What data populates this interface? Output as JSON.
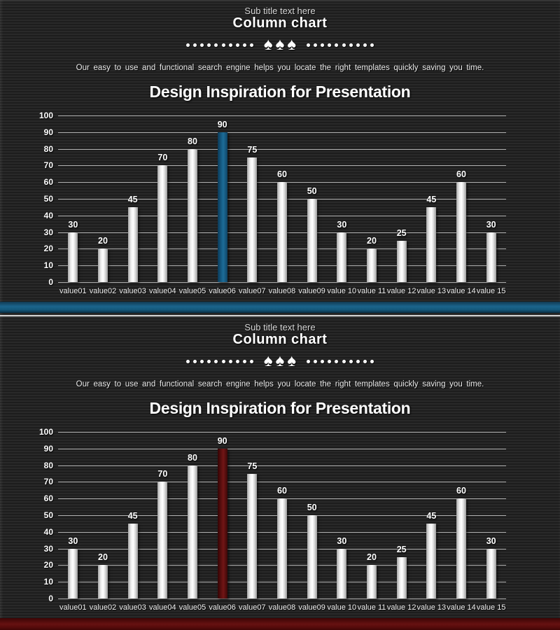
{
  "content": {
    "subtitle": "Sub title text here",
    "title": "Column chart",
    "description": "Our easy to use and functional search engine helps you locate the right templates quickly saving you time.",
    "heading": "Design Inspiration for Presentation"
  },
  "divider": {
    "left_dots": 10,
    "right_dots": 10,
    "spade_icon": "♠",
    "spade_count": 3,
    "color": "#ffffff"
  },
  "slides": [
    {
      "name": "column-chart-slide-blue",
      "accent": "blue",
      "accent_color": "#1a628a",
      "strip_color": "#14587b"
    },
    {
      "name": "column-chart-slide-red",
      "accent": "red",
      "accent_color": "#641111",
      "strip_color": "#5c0d0d"
    }
  ],
  "chart_data": [
    {
      "type": "bar",
      "categories": [
        "value01",
        "value02",
        "value03",
        "value04",
        "value05",
        "value06",
        "value07",
        "value08",
        "value09",
        "value 10",
        "value 11",
        "value 12",
        "value 13",
        "value 14",
        "value 15"
      ],
      "values": [
        30,
        20,
        45,
        70,
        80,
        90,
        75,
        60,
        50,
        30,
        20,
        25,
        45,
        60,
        30
      ],
      "title": "",
      "xlabel": "",
      "ylabel": "",
      "ylim": [
        0,
        100
      ],
      "ytick_step": 10,
      "yticks": [
        0,
        10,
        20,
        30,
        40,
        50,
        60,
        70,
        80,
        90,
        100
      ],
      "grid": true,
      "value_labels": true,
      "bar_color": "#f2f2f2",
      "highlight_index": 5,
      "highlight_color": "#1a628a",
      "legend": "none"
    },
    {
      "type": "bar",
      "categories": [
        "value01",
        "value02",
        "value03",
        "value04",
        "value05",
        "value06",
        "value07",
        "value08",
        "value09",
        "value 10",
        "value 11",
        "value 12",
        "value 13",
        "value 14",
        "value 15"
      ],
      "values": [
        30,
        20,
        45,
        70,
        80,
        90,
        75,
        60,
        50,
        30,
        20,
        25,
        45,
        60,
        30
      ],
      "title": "",
      "xlabel": "",
      "ylabel": "",
      "ylim": [
        0,
        100
      ],
      "ytick_step": 10,
      "yticks": [
        0,
        10,
        20,
        30,
        40,
        50,
        60,
        70,
        80,
        90,
        100
      ],
      "grid": true,
      "value_labels": true,
      "bar_color": "#f2f2f2",
      "highlight_index": 5,
      "highlight_color": "#641111",
      "legend": "none"
    }
  ]
}
